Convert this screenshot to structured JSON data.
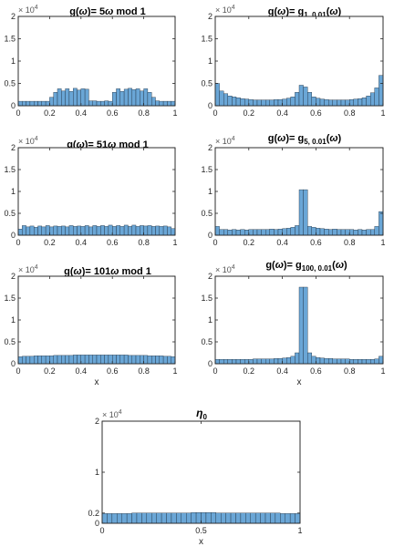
{
  "figure": {
    "titles": {
      "p1": {
        "t1": "g(",
        "t2": "ω",
        "t3": ")= 5",
        "t4": "ω",
        "t5": " mod 1"
      },
      "p2": {
        "t1": "g(",
        "t2": "ω",
        "t3": ")= g",
        "sub": "1, 0.01",
        "t4": "(",
        "t5": "ω",
        "t6": ")"
      },
      "p3": {
        "t1": "g(",
        "t2": "ω",
        "t3": ")= 51",
        "t4": "ω",
        "t5": " mod 1"
      },
      "p4": {
        "t1": "g(",
        "t2": "ω",
        "t3": ")= g",
        "sub": "5, 0.01",
        "t4": "(",
        "t5": "ω",
        "t6": ")"
      },
      "p5": {
        "t1": "g(",
        "t2": "ω",
        "t3": ")= 101",
        "t4": "ω",
        "t5": " mod 1"
      },
      "p6": {
        "t1": "g(",
        "t2": "ω",
        "t3": ")= g",
        "sub": "100, 0.01",
        "t4": "(",
        "t5": "ω",
        "t6": ")"
      },
      "p7": {
        "t1": "η",
        "sub": "0"
      }
    },
    "exponent": {
      "base": "× 10",
      "power": "4"
    }
  },
  "chart_data": [
    {
      "id": "p1",
      "type": "bar",
      "bins": 40,
      "xlim": [
        0,
        1
      ],
      "ylim": [
        0,
        2
      ],
      "xticks": [
        "0",
        "0.2",
        "0.4",
        "0.6",
        "0.8",
        "1"
      ],
      "yticks": [
        "0",
        "0.5",
        "1",
        "1.5",
        "2"
      ],
      "xlabel": "",
      "y_multiplier": "× 10^4",
      "values": [
        0.1,
        0.1,
        0.1,
        0.1,
        0.1,
        0.1,
        0.1,
        0.1,
        0.19,
        0.3,
        0.38,
        0.33,
        0.38,
        0.32,
        0.39,
        0.35,
        0.38,
        0.37,
        0.11,
        0.11,
        0.1,
        0.1,
        0.11,
        0.1,
        0.3,
        0.38,
        0.32,
        0.37,
        0.39,
        0.36,
        0.38,
        0.33,
        0.38,
        0.3,
        0.19,
        0.11,
        0.1,
        0.1,
        0.1,
        0.1
      ]
    },
    {
      "id": "p2",
      "type": "bar",
      "bins": 40,
      "xlim": [
        0,
        1
      ],
      "ylim": [
        0,
        2
      ],
      "xticks": [
        "0",
        "0.2",
        "0.4",
        "0.6",
        "0.8",
        "1"
      ],
      "yticks": [
        "0",
        "0.5",
        "1",
        "1.5",
        "2"
      ],
      "xlabel": "",
      "y_multiplier": "× 10^4",
      "values": [
        0.5,
        0.33,
        0.27,
        0.22,
        0.2,
        0.18,
        0.16,
        0.15,
        0.14,
        0.13,
        0.13,
        0.13,
        0.13,
        0.13,
        0.14,
        0.14,
        0.15,
        0.17,
        0.2,
        0.3,
        0.46,
        0.42,
        0.3,
        0.2,
        0.17,
        0.15,
        0.14,
        0.13,
        0.13,
        0.13,
        0.13,
        0.13,
        0.14,
        0.15,
        0.16,
        0.18,
        0.22,
        0.29,
        0.4,
        0.68
      ]
    },
    {
      "id": "p3",
      "type": "bar",
      "bins": 40,
      "xlim": [
        0,
        1
      ],
      "ylim": [
        0,
        2
      ],
      "xticks": [
        "0",
        "0.2",
        "0.4",
        "0.6",
        "0.8",
        "1"
      ],
      "yticks": [
        "0",
        "0.5",
        "1",
        "1.5",
        "2"
      ],
      "xlabel": "",
      "y_multiplier": "× 10^4",
      "values": [
        0.14,
        0.22,
        0.19,
        0.21,
        0.18,
        0.21,
        0.19,
        0.22,
        0.19,
        0.21,
        0.2,
        0.21,
        0.19,
        0.22,
        0.2,
        0.21,
        0.2,
        0.22,
        0.19,
        0.22,
        0.2,
        0.22,
        0.2,
        0.23,
        0.2,
        0.22,
        0.2,
        0.23,
        0.2,
        0.23,
        0.2,
        0.22,
        0.21,
        0.22,
        0.2,
        0.21,
        0.2,
        0.21,
        0.19,
        0.15
      ]
    },
    {
      "id": "p4",
      "type": "bar",
      "bins": 40,
      "xlim": [
        0,
        1
      ],
      "ylim": [
        0,
        2
      ],
      "xticks": [
        "0",
        "0.2",
        "0.4",
        "0.6",
        "0.8",
        "1"
      ],
      "yticks": [
        "0",
        "0.5",
        "1",
        "1.5",
        "2"
      ],
      "xlabel": "",
      "y_multiplier": "× 10^4",
      "values": [
        0.2,
        0.13,
        0.13,
        0.12,
        0.13,
        0.12,
        0.13,
        0.12,
        0.13,
        0.13,
        0.13,
        0.13,
        0.13,
        0.14,
        0.13,
        0.14,
        0.15,
        0.16,
        0.18,
        0.22,
        1.04,
        1.04,
        0.2,
        0.18,
        0.16,
        0.15,
        0.14,
        0.13,
        0.14,
        0.13,
        0.13,
        0.13,
        0.13,
        0.12,
        0.13,
        0.12,
        0.13,
        0.13,
        0.2,
        0.54
      ]
    },
    {
      "id": "p5",
      "type": "bar",
      "bins": 40,
      "xlim": [
        0,
        1
      ],
      "ylim": [
        0,
        2
      ],
      "xticks": [
        "0",
        "0.2",
        "0.4",
        "0.6",
        "0.8",
        "1"
      ],
      "yticks": [
        "0",
        "0.5",
        "1",
        "1.5",
        "2"
      ],
      "xlabel": "x",
      "y_multiplier": "× 10^4",
      "values": [
        0.16,
        0.17,
        0.17,
        0.17,
        0.18,
        0.18,
        0.18,
        0.18,
        0.18,
        0.19,
        0.19,
        0.19,
        0.19,
        0.19,
        0.2,
        0.2,
        0.2,
        0.2,
        0.2,
        0.2,
        0.2,
        0.2,
        0.2,
        0.2,
        0.2,
        0.2,
        0.2,
        0.2,
        0.19,
        0.19,
        0.19,
        0.19,
        0.19,
        0.18,
        0.18,
        0.18,
        0.18,
        0.17,
        0.17,
        0.16
      ]
    },
    {
      "id": "p6",
      "type": "bar",
      "bins": 40,
      "xlim": [
        0,
        1
      ],
      "ylim": [
        0,
        2
      ],
      "xticks": [
        "0",
        "0.2",
        "0.4",
        "0.6",
        "0.8",
        "1"
      ],
      "yticks": [
        "0",
        "0.5",
        "1",
        "1.5",
        "2"
      ],
      "xlabel": "x",
      "y_multiplier": "× 10^4",
      "values": [
        0.1,
        0.1,
        0.1,
        0.1,
        0.1,
        0.1,
        0.1,
        0.1,
        0.1,
        0.11,
        0.11,
        0.11,
        0.11,
        0.11,
        0.12,
        0.12,
        0.13,
        0.14,
        0.17,
        0.25,
        1.75,
        1.75,
        0.25,
        0.17,
        0.14,
        0.13,
        0.12,
        0.12,
        0.11,
        0.11,
        0.11,
        0.11,
        0.1,
        0.1,
        0.1,
        0.1,
        0.1,
        0.1,
        0.11,
        0.17
      ]
    },
    {
      "id": "p7",
      "type": "bar",
      "bins": 40,
      "xlim": [
        0,
        1
      ],
      "ylim": [
        0,
        2
      ],
      "xticks": [
        "0",
        "0.5",
        "1"
      ],
      "yticks": [
        "0",
        "0.2",
        "1",
        "2"
      ],
      "xlabel": "x",
      "y_multiplier": "× 10^4",
      "values": [
        0.19,
        0.19,
        0.19,
        0.19,
        0.19,
        0.19,
        0.2,
        0.2,
        0.2,
        0.2,
        0.2,
        0.2,
        0.2,
        0.2,
        0.2,
        0.2,
        0.2,
        0.2,
        0.21,
        0.21,
        0.21,
        0.21,
        0.21,
        0.2,
        0.2,
        0.2,
        0.2,
        0.2,
        0.2,
        0.2,
        0.2,
        0.2,
        0.2,
        0.2,
        0.2,
        0.2,
        0.19,
        0.19,
        0.19,
        0.19
      ]
    }
  ],
  "colors": {
    "bar_fill": "#6aa6d6",
    "bar_edge": "#1f2f3f",
    "axis": "#262626",
    "tick_text": "#262626"
  }
}
